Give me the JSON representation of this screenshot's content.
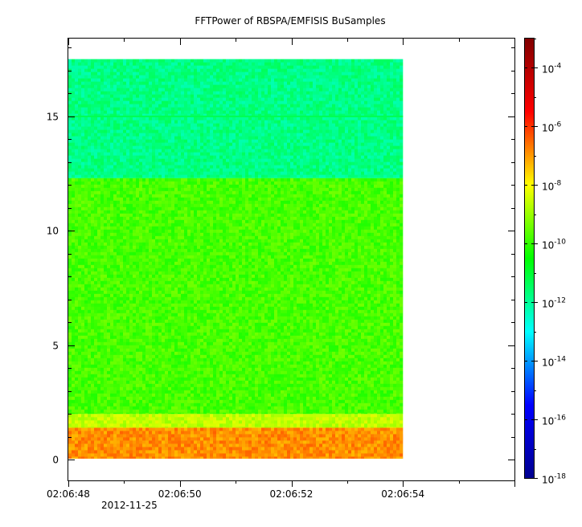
{
  "chart_data": {
    "type": "heatmap",
    "title": "FFTPower of RBSPA/EMFISIS  BuSamples",
    "xlabel": "",
    "ylabel": "",
    "x_start": "02:06:48",
    "x_end": "02:06:54",
    "x_range": [
      "02:06:48",
      "02:06:56"
    ],
    "x_ticks": [
      "02:06:48",
      "02:06:50",
      "02:06:52",
      "02:06:54"
    ],
    "x_date_label": "2012-11-25",
    "y_range": [
      -0.9,
      18.4
    ],
    "y_ticks": [
      0,
      5,
      10,
      15
    ],
    "z_scale": "log",
    "z_range": [
      1e-18,
      0.001
    ],
    "colorbar_ticks": [
      {
        "base": "10",
        "exp": "-18"
      },
      {
        "base": "10",
        "exp": "-16"
      },
      {
        "base": "10",
        "exp": "-14"
      },
      {
        "base": "10",
        "exp": "-12"
      },
      {
        "base": "10",
        "exp": "-10"
      },
      {
        "base": "10",
        "exp": "-8"
      },
      {
        "base": "10",
        "exp": "-6"
      },
      {
        "base": "10",
        "exp": "-4"
      }
    ],
    "colormap": [
      "#00008f",
      "#0000ff",
      "#00ffff",
      "#00ff00",
      "#ffff00",
      "#ff0000",
      "#800000"
    ],
    "bands": [
      {
        "y_from": 12.3,
        "y_to": 17.5,
        "log10_power": -11.8
      },
      {
        "y_from": 2.0,
        "y_to": 12.3,
        "log10_power": -9.8
      },
      {
        "y_from": 1.4,
        "y_to": 2.0,
        "log10_power": -8.6
      },
      {
        "y_from": 0.05,
        "y_to": 1.4,
        "log10_power": -6.9
      }
    ],
    "line_features": [
      {
        "y": 15.0,
        "log10_power": -11.3
      }
    ],
    "grid": false,
    "legend": "colorbar-right"
  }
}
